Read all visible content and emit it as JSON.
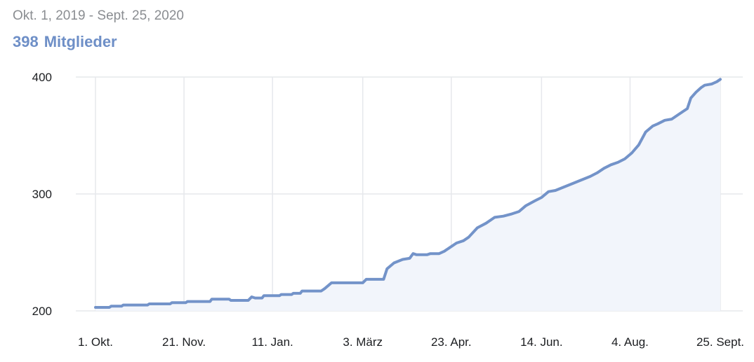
{
  "header": {
    "date_range": "Okt. 1, 2019 - Sept. 25, 2020",
    "member_count": "398",
    "member_label": "Mitglieder"
  },
  "colors": {
    "line": "#7393c9",
    "fill": "#f2f5fb",
    "grid": "#e6e8ec",
    "header_accent": "#6e8fc7"
  },
  "chart_data": {
    "type": "area",
    "title": "",
    "xlabel": "",
    "ylabel": "",
    "ylim": [
      200,
      400
    ],
    "yticks": [
      "400",
      "300",
      "200"
    ],
    "xlim": [
      "2019-10-01",
      "2020-09-25"
    ],
    "xticks": [
      {
        "date": "2019-10-01",
        "label": "1. Okt."
      },
      {
        "date": "2019-11-21",
        "label": "21. Nov."
      },
      {
        "date": "2020-01-11",
        "label": "11. Jan."
      },
      {
        "date": "2020-03-03",
        "label": "3. März"
      },
      {
        "date": "2020-04-23",
        "label": "23. Apr."
      },
      {
        "date": "2020-06-14",
        "label": "14. Jun."
      },
      {
        "date": "2020-08-04",
        "label": "4. Aug."
      },
      {
        "date": "2020-09-25",
        "label": "25. Sept."
      }
    ],
    "grid": true,
    "series": [
      {
        "points": [
          [
            "2019-10-01",
            203
          ],
          [
            "2019-10-09",
            203
          ],
          [
            "2019-10-10",
            204
          ],
          [
            "2019-10-16",
            204
          ],
          [
            "2019-10-17",
            205
          ],
          [
            "2019-10-31",
            205
          ],
          [
            "2019-11-01",
            206
          ],
          [
            "2019-11-13",
            206
          ],
          [
            "2019-11-14",
            207
          ],
          [
            "2019-11-22",
            207
          ],
          [
            "2019-11-23",
            208
          ],
          [
            "2019-12-06",
            208
          ],
          [
            "2019-12-07",
            210
          ],
          [
            "2019-12-17",
            210
          ],
          [
            "2019-12-18",
            209
          ],
          [
            "2019-12-28",
            209
          ],
          [
            "2019-12-30",
            212
          ],
          [
            "2020-01-01",
            211
          ],
          [
            "2020-01-05",
            211
          ],
          [
            "2020-01-06",
            213
          ],
          [
            "2020-01-15",
            213
          ],
          [
            "2020-01-16",
            214
          ],
          [
            "2020-01-22",
            214
          ],
          [
            "2020-01-23",
            215
          ],
          [
            "2020-01-27",
            215
          ],
          [
            "2020-01-28",
            217
          ],
          [
            "2020-02-08",
            217
          ],
          [
            "2020-02-10",
            219
          ],
          [
            "2020-02-14",
            224
          ],
          [
            "2020-03-03",
            224
          ],
          [
            "2020-03-05",
            227
          ],
          [
            "2020-03-15",
            227
          ],
          [
            "2020-03-17",
            236
          ],
          [
            "2020-03-21",
            241
          ],
          [
            "2020-03-26",
            244
          ],
          [
            "2020-03-30",
            245
          ],
          [
            "2020-04-01",
            249
          ],
          [
            "2020-04-03",
            248
          ],
          [
            "2020-04-09",
            248
          ],
          [
            "2020-04-11",
            249
          ],
          [
            "2020-04-16",
            249
          ],
          [
            "2020-04-19",
            251
          ],
          [
            "2020-04-22",
            254
          ],
          [
            "2020-04-26",
            258
          ],
          [
            "2020-04-30",
            260
          ],
          [
            "2020-05-03",
            263
          ],
          [
            "2020-05-08",
            271
          ],
          [
            "2020-05-13",
            275
          ],
          [
            "2020-05-18",
            280
          ],
          [
            "2020-05-23",
            281
          ],
          [
            "2020-05-28",
            283
          ],
          [
            "2020-06-01",
            285
          ],
          [
            "2020-06-05",
            290
          ],
          [
            "2020-06-10",
            294
          ],
          [
            "2020-06-14",
            297
          ],
          [
            "2020-06-18",
            302
          ],
          [
            "2020-06-22",
            303
          ],
          [
            "2020-06-27",
            306
          ],
          [
            "2020-07-02",
            309
          ],
          [
            "2020-07-07",
            312
          ],
          [
            "2020-07-12",
            315
          ],
          [
            "2020-07-16",
            318
          ],
          [
            "2020-07-20",
            322
          ],
          [
            "2020-07-24",
            325
          ],
          [
            "2020-07-28",
            327
          ],
          [
            "2020-08-01",
            330
          ],
          [
            "2020-08-05",
            335
          ],
          [
            "2020-08-09",
            342
          ],
          [
            "2020-08-13",
            353
          ],
          [
            "2020-08-17",
            358
          ],
          [
            "2020-08-20",
            360
          ],
          [
            "2020-08-24",
            363
          ],
          [
            "2020-08-28",
            364
          ],
          [
            "2020-09-01",
            368
          ],
          [
            "2020-09-04",
            371
          ],
          [
            "2020-09-06",
            373
          ],
          [
            "2020-09-08",
            382
          ],
          [
            "2020-09-11",
            387
          ],
          [
            "2020-09-14",
            391
          ],
          [
            "2020-09-16",
            393
          ],
          [
            "2020-09-20",
            394
          ],
          [
            "2020-09-23",
            396
          ],
          [
            "2020-09-25",
            398
          ]
        ]
      }
    ]
  }
}
